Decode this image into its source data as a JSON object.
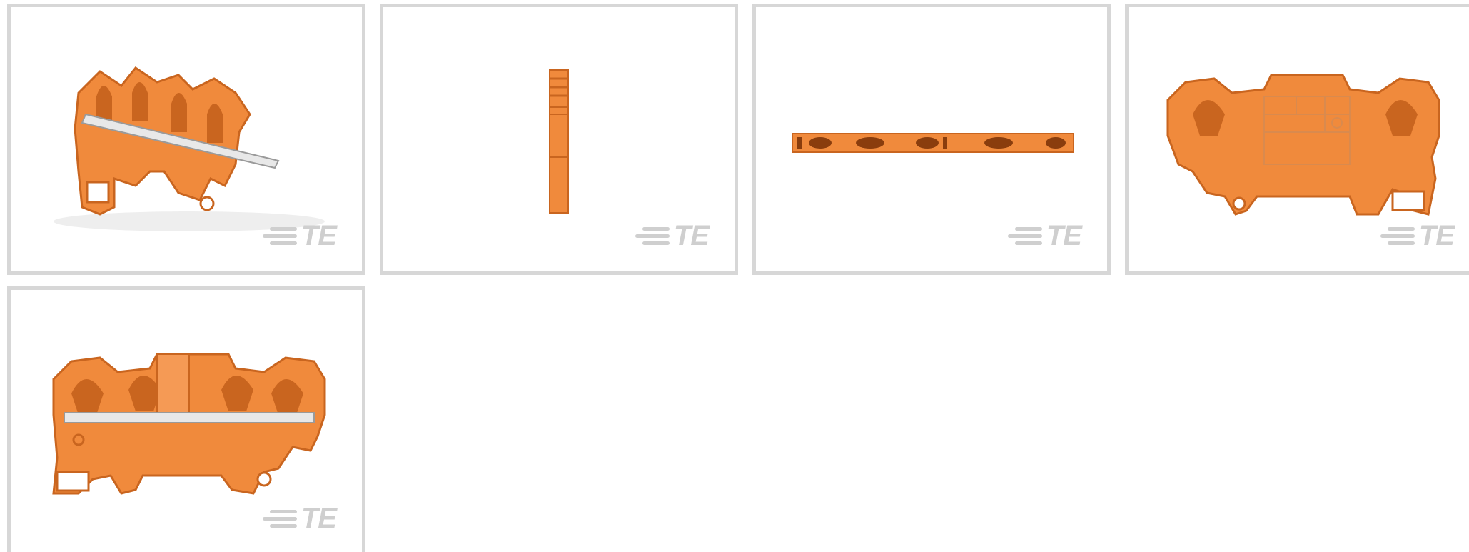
{
  "gallery": {
    "thumbnails": [
      {
        "view": "isometric",
        "logo_text": "TE"
      },
      {
        "view": "side",
        "logo_text": "TE"
      },
      {
        "view": "top",
        "logo_text": "TE"
      },
      {
        "view": "back",
        "logo_text": "TE"
      },
      {
        "view": "front",
        "logo_text": "TE"
      }
    ],
    "colors": {
      "border": "#d7d7d7",
      "product_orange": "#f08a3c",
      "product_orange_dark": "#c9651f",
      "jumper_bar": "#e8e8e8",
      "logo_gray": "#cfcfcf"
    },
    "icon": "te-logo-icon"
  }
}
